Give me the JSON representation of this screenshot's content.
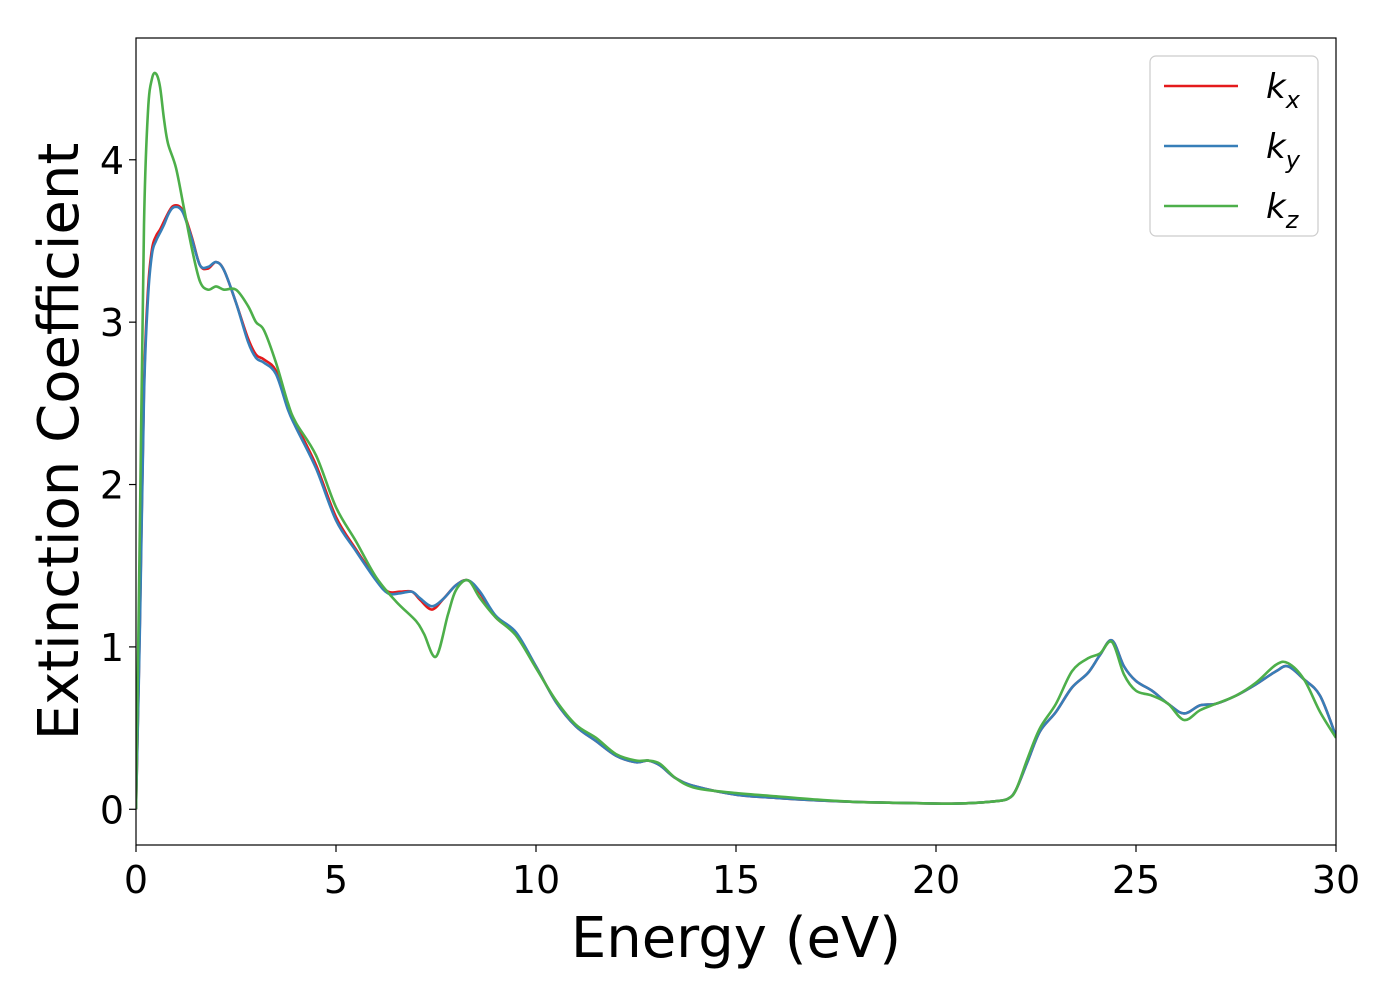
{
  "chart_data": {
    "type": "line",
    "title": "",
    "xlabel": "Energy (eV)",
    "ylabel": "Extinction Coefficient",
    "xlim": [
      0,
      30
    ],
    "ylim": [
      -0.22,
      4.75
    ],
    "xticks": [
      "0",
      "5",
      "10",
      "15",
      "20",
      "25",
      "30"
    ],
    "yticks": [
      "0",
      "1",
      "2",
      "3",
      "4"
    ],
    "grid": false,
    "legend_position": "top-right",
    "series": [
      {
        "name": "k_x",
        "legend_base": "k",
        "legend_sub": "x",
        "color": "#e41a1c",
        "x": [
          0,
          0.1,
          0.2,
          0.3,
          0.4,
          0.5,
          0.6,
          0.7,
          0.8,
          0.9,
          1.0,
          1.1,
          1.2,
          1.4,
          1.6,
          1.8,
          2.0,
          2.2,
          2.5,
          2.8,
          3.0,
          3.2,
          3.5,
          3.8,
          4.0,
          4.5,
          5.0,
          5.5,
          6.0,
          6.3,
          6.6,
          6.9,
          7.1,
          7.4,
          7.7,
          8.0,
          8.3,
          8.6,
          9.0,
          9.5,
          10.0,
          10.5,
          11.0,
          11.5,
          12.0,
          12.5,
          12.8,
          13.1,
          13.5,
          14.0,
          15.0,
          16.0,
          17.0,
          18.0,
          19.0,
          20.0,
          20.5,
          21.0,
          21.5,
          21.8,
          22.0,
          22.3,
          22.6,
          23.0,
          23.4,
          23.8,
          24.1,
          24.4,
          24.7,
          25.0,
          25.4,
          25.8,
          26.2,
          26.6,
          27.0,
          27.5,
          28.0,
          28.5,
          28.8,
          29.2,
          29.6,
          30.0
        ],
        "y": [
          0.0,
          1.2,
          2.6,
          3.2,
          3.45,
          3.53,
          3.57,
          3.62,
          3.67,
          3.71,
          3.72,
          3.71,
          3.67,
          3.52,
          3.35,
          3.33,
          3.37,
          3.32,
          3.12,
          2.9,
          2.8,
          2.77,
          2.7,
          2.48,
          2.37,
          2.12,
          1.8,
          1.6,
          1.42,
          1.34,
          1.34,
          1.34,
          1.29,
          1.23,
          1.3,
          1.38,
          1.41,
          1.33,
          1.18,
          1.08,
          0.88,
          0.66,
          0.51,
          0.42,
          0.33,
          0.29,
          0.3,
          0.27,
          0.19,
          0.14,
          0.09,
          0.07,
          0.055,
          0.045,
          0.04,
          0.035,
          0.035,
          0.04,
          0.05,
          0.065,
          0.12,
          0.3,
          0.48,
          0.6,
          0.75,
          0.84,
          0.95,
          1.04,
          0.88,
          0.79,
          0.73,
          0.65,
          0.59,
          0.64,
          0.65,
          0.7,
          0.77,
          0.85,
          0.88,
          0.8,
          0.7,
          0.45
        ]
      },
      {
        "name": "k_y",
        "legend_base": "k",
        "legend_sub": "y",
        "color": "#377eb8",
        "x": [
          0,
          0.1,
          0.2,
          0.3,
          0.4,
          0.5,
          0.6,
          0.7,
          0.8,
          0.9,
          1.0,
          1.1,
          1.2,
          1.4,
          1.6,
          1.8,
          2.0,
          2.2,
          2.5,
          2.8,
          3.0,
          3.2,
          3.5,
          3.8,
          4.0,
          4.5,
          5.0,
          5.5,
          6.0,
          6.3,
          6.6,
          6.9,
          7.1,
          7.4,
          7.7,
          8.0,
          8.3,
          8.6,
          9.0,
          9.5,
          10.0,
          10.5,
          11.0,
          11.5,
          12.0,
          12.5,
          12.8,
          13.1,
          13.5,
          14.0,
          15.0,
          16.0,
          17.0,
          18.0,
          19.0,
          20.0,
          20.5,
          21.0,
          21.5,
          21.8,
          22.0,
          22.3,
          22.6,
          23.0,
          23.4,
          23.8,
          24.1,
          24.4,
          24.7,
          25.0,
          25.4,
          25.8,
          26.2,
          26.6,
          27.0,
          27.5,
          28.0,
          28.5,
          28.8,
          29.2,
          29.6,
          30.0
        ],
        "y": [
          0.0,
          1.15,
          2.55,
          3.15,
          3.42,
          3.5,
          3.55,
          3.6,
          3.66,
          3.7,
          3.71,
          3.7,
          3.66,
          3.51,
          3.35,
          3.34,
          3.37,
          3.32,
          3.12,
          2.88,
          2.78,
          2.75,
          2.68,
          2.46,
          2.35,
          2.1,
          1.78,
          1.59,
          1.41,
          1.33,
          1.33,
          1.34,
          1.3,
          1.25,
          1.3,
          1.38,
          1.41,
          1.34,
          1.19,
          1.09,
          0.88,
          0.66,
          0.51,
          0.42,
          0.33,
          0.29,
          0.3,
          0.27,
          0.19,
          0.14,
          0.09,
          0.07,
          0.055,
          0.045,
          0.04,
          0.035,
          0.035,
          0.04,
          0.05,
          0.065,
          0.12,
          0.3,
          0.48,
          0.6,
          0.75,
          0.84,
          0.95,
          1.04,
          0.88,
          0.79,
          0.73,
          0.65,
          0.59,
          0.64,
          0.65,
          0.7,
          0.77,
          0.85,
          0.88,
          0.8,
          0.7,
          0.45
        ]
      },
      {
        "name": "k_z",
        "legend_base": "k",
        "legend_sub": "z",
        "color": "#4daf4a",
        "x": [
          0,
          0.1,
          0.2,
          0.3,
          0.4,
          0.5,
          0.6,
          0.7,
          0.8,
          1.0,
          1.2,
          1.4,
          1.6,
          1.8,
          2.0,
          2.2,
          2.5,
          2.8,
          3.0,
          3.2,
          3.5,
          3.8,
          4.0,
          4.5,
          5.0,
          5.5,
          6.0,
          6.5,
          7.0,
          7.2,
          7.5,
          7.8,
          8.0,
          8.3,
          8.6,
          9.0,
          9.5,
          10.0,
          10.5,
          11.0,
          11.5,
          12.0,
          12.5,
          12.8,
          13.1,
          13.5,
          14.0,
          15.0,
          16.0,
          17.0,
          18.0,
          19.0,
          20.0,
          20.5,
          21.0,
          21.5,
          21.8,
          22.0,
          22.3,
          22.6,
          23.0,
          23.4,
          23.8,
          24.1,
          24.4,
          24.7,
          25.0,
          25.4,
          25.8,
          26.2,
          26.6,
          27.0,
          27.5,
          28.0,
          28.5,
          28.8,
          29.2,
          29.6,
          30.0
        ],
        "y": [
          0.0,
          1.8,
          3.6,
          4.3,
          4.5,
          4.53,
          4.45,
          4.25,
          4.1,
          3.95,
          3.7,
          3.45,
          3.25,
          3.2,
          3.22,
          3.2,
          3.2,
          3.1,
          3.0,
          2.95,
          2.75,
          2.5,
          2.38,
          2.18,
          1.86,
          1.65,
          1.43,
          1.28,
          1.16,
          1.08,
          0.94,
          1.2,
          1.35,
          1.41,
          1.3,
          1.18,
          1.07,
          0.87,
          0.67,
          0.52,
          0.44,
          0.34,
          0.3,
          0.3,
          0.28,
          0.19,
          0.13,
          0.1,
          0.08,
          0.06,
          0.045,
          0.04,
          0.035,
          0.035,
          0.04,
          0.05,
          0.065,
          0.12,
          0.32,
          0.5,
          0.65,
          0.85,
          0.93,
          0.96,
          1.03,
          0.83,
          0.73,
          0.7,
          0.65,
          0.55,
          0.61,
          0.65,
          0.7,
          0.78,
          0.89,
          0.9,
          0.8,
          0.6,
          0.44
        ]
      }
    ]
  }
}
